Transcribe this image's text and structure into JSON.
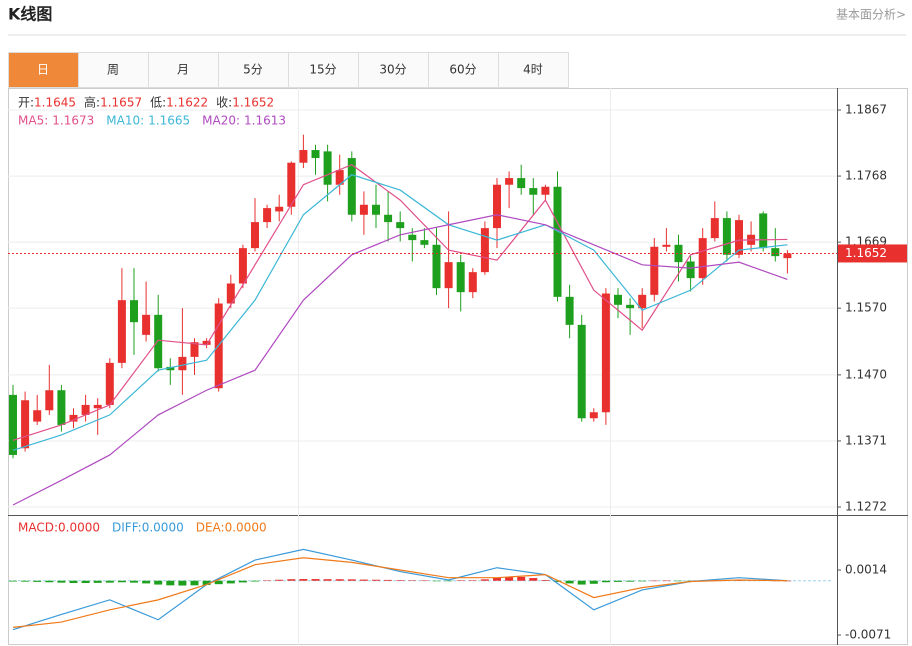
{
  "header": {
    "title": "K线图",
    "link": "基本面分析>"
  },
  "tabs": [
    "日",
    "周",
    "月",
    "5分",
    "15分",
    "30分",
    "60分",
    "4时"
  ],
  "active_tab": "日",
  "chart_data": [
    {
      "type": "candlestick",
      "ohlc_labels": [
        "开:",
        "高:",
        "低:",
        "收:"
      ],
      "up_color": "#e8312f",
      "down_color": "#1ea01e",
      "open": [
        1.144,
        1.136,
        1.14,
        1.1417,
        1.1447,
        1.14,
        1.141,
        1.142,
        1.1425,
        1.1488,
        1.1582,
        1.153,
        1.156,
        1.1482,
        1.1477,
        1.1497,
        1.1515,
        1.145,
        1.1577,
        1.1607,
        1.166,
        1.1699,
        1.1715,
        1.1722,
        1.1788,
        1.1807,
        1.1805,
        1.1755,
        1.1795,
        1.171,
        1.1725,
        1.171,
        1.1699,
        1.168,
        1.1672,
        1.1665,
        1.16,
        1.1639,
        1.1594,
        1.1624,
        1.169,
        1.1755,
        1.1765,
        1.175,
        1.174,
        1.1752,
        1.1587,
        1.1545,
        1.1405,
        1.1414,
        1.159,
        1.1575,
        1.157,
        1.159,
        1.1662,
        1.1665,
        1.164,
        1.1615,
        1.1675,
        1.1705,
        1.165,
        1.1665,
        1.1712,
        1.166,
        1.1645
      ],
      "close": [
        1.135,
        1.1432,
        1.1417,
        1.1447,
        1.1395,
        1.141,
        1.1425,
        1.1425,
        1.1488,
        1.1582,
        1.1549,
        1.156,
        1.148,
        1.1477,
        1.1497,
        1.1519,
        1.1521,
        1.1577,
        1.1607,
        1.166,
        1.1699,
        1.172,
        1.1722,
        1.1788,
        1.1807,
        1.1795,
        1.1755,
        1.1777,
        1.171,
        1.1725,
        1.171,
        1.1699,
        1.169,
        1.1672,
        1.1665,
        1.16,
        1.1639,
        1.1594,
        1.1624,
        1.169,
        1.1755,
        1.1765,
        1.175,
        1.174,
        1.1752,
        1.1587,
        1.1545,
        1.1405,
        1.1414,
        1.1592,
        1.1575,
        1.157,
        1.159,
        1.1662,
        1.1665,
        1.1639,
        1.1615,
        1.1675,
        1.1705,
        1.165,
        1.1702,
        1.168,
        1.166,
        1.1648,
        1.1652
      ],
      "high": [
        1.1455,
        1.1445,
        1.144,
        1.1485,
        1.1455,
        1.142,
        1.144,
        1.1435,
        1.1495,
        1.163,
        1.163,
        1.161,
        1.159,
        1.1495,
        1.157,
        1.1525,
        1.1525,
        1.1585,
        1.162,
        1.1665,
        1.1735,
        1.1725,
        1.174,
        1.179,
        1.183,
        1.1815,
        1.1815,
        1.18,
        1.1805,
        1.1745,
        1.1755,
        1.1745,
        1.1715,
        1.169,
        1.169,
        1.169,
        1.1715,
        1.165,
        1.163,
        1.17,
        1.1765,
        1.1775,
        1.1785,
        1.1765,
        1.1755,
        1.1775,
        1.1605,
        1.156,
        1.142,
        1.16,
        1.16,
        1.1585,
        1.16,
        1.1675,
        1.169,
        1.168,
        1.165,
        1.169,
        1.173,
        1.1715,
        1.171,
        1.17,
        1.1715,
        1.169,
        1.1657
      ],
      "low": [
        1.1345,
        1.1355,
        1.1395,
        1.141,
        1.1385,
        1.139,
        1.14,
        1.138,
        1.142,
        1.148,
        1.15,
        1.152,
        1.1475,
        1.1455,
        1.144,
        1.147,
        1.151,
        1.1445,
        1.157,
        1.16,
        1.1655,
        1.169,
        1.17,
        1.171,
        1.178,
        1.177,
        1.173,
        1.174,
        1.17,
        1.168,
        1.169,
        1.167,
        1.167,
        1.164,
        1.166,
        1.159,
        1.157,
        1.1565,
        1.1585,
        1.162,
        1.166,
        1.172,
        1.174,
        1.171,
        1.173,
        1.158,
        1.1525,
        1.14,
        1.14,
        1.1395,
        1.1555,
        1.153,
        1.154,
        1.158,
        1.1655,
        1.161,
        1.1595,
        1.1605,
        1.167,
        1.164,
        1.1645,
        1.1655,
        1.1655,
        1.164,
        1.1622
      ],
      "series": [
        {
          "name": "MA5:",
          "color": "#e0508a",
          "x": [
            0,
            4,
            8,
            12,
            16,
            20,
            24,
            28,
            32,
            36,
            40,
            44,
            48,
            52,
            56,
            60,
            64
          ],
          "values": [
            1.1372,
            1.1395,
            1.1425,
            1.1522,
            1.1515,
            1.1635,
            1.1755,
            1.1785,
            1.1732,
            1.1657,
            1.1642,
            1.1732,
            1.1597,
            1.1537,
            1.165,
            1.1672,
            1.1673
          ]
        },
        {
          "name": "MA10:",
          "color": "#3cb7d6",
          "x": [
            0,
            4,
            8,
            12,
            16,
            20,
            24,
            28,
            32,
            36,
            40,
            44,
            48,
            52,
            56,
            60,
            64
          ],
          "values": [
            1.1357,
            1.138,
            1.141,
            1.1477,
            1.1492,
            1.1582,
            1.171,
            1.177,
            1.1747,
            1.1695,
            1.1672,
            1.1695,
            1.1657,
            1.1567,
            1.1597,
            1.1657,
            1.1665
          ]
        },
        {
          "name": "MA20:",
          "color": "#b04bc0",
          "x": [
            0,
            4,
            8,
            12,
            16,
            20,
            24,
            28,
            32,
            36,
            40,
            44,
            48,
            52,
            56,
            60,
            64
          ],
          "values": [
            1.1275,
            1.1312,
            1.135,
            1.141,
            1.1447,
            1.1477,
            1.1582,
            1.165,
            1.168,
            1.1695,
            1.171,
            1.1695,
            1.1665,
            1.1635,
            1.163,
            1.1639,
            1.1613
          ]
        }
      ],
      "ylim": [
        1.126,
        1.1897
      ],
      "yticks": [
        1.1867,
        1.1768,
        1.1669,
        {
          "value": 1.157,
          "label": "1.1570"
        },
        {
          "value": 1.147,
          "label": "1.1470"
        },
        1.1371,
        1.1272
      ],
      "grid": true,
      "last_price_line": true
    },
    {
      "type": "macd",
      "legend": [
        {
          "name": "MACD:",
          "value": {
            "value": 0,
            "label": "0.0000"
          },
          "color": "#e8312f"
        },
        {
          "name": "DIFF:",
          "value": {
            "value": 0,
            "label": "0.0000"
          },
          "color": "#3a9ad9"
        },
        {
          "name": "DEA:",
          "value": {
            "value": 0,
            "label": "0.0000"
          },
          "color": "#f07a1a"
        }
      ],
      "values": [
        -0.0001,
        -0.00012,
        -0.00015,
        -0.0002,
        -0.00025,
        -0.0003,
        -0.0003,
        -0.00028,
        -0.00025,
        -0.0002,
        -0.00025,
        -0.00035,
        -0.0005,
        -0.0006,
        -0.00063,
        -0.0006,
        -0.00055,
        -0.00045,
        -0.00035,
        -0.00022,
        -0.0001,
        3e-05,
        0.00013,
        0.0002,
        0.00022,
        0.00022,
        0.0002,
        0.0002,
        0.00018,
        0.00015,
        0.00013,
        0.00011,
        8e-05,
        6e-05,
        3e-05,
        -5e-05,
        -3e-05,
        5e-05,
        6e-05,
        0.00018,
        0.00042,
        0.0005,
        0.0005,
        0.00035,
        0.0001,
        -0.00015,
        -0.00035,
        -0.0005,
        -0.0004,
        -0.0002,
        -0.00015,
        -0.00012,
        -8e-05,
        1e-05,
        2e-05,
        -2e-05,
        -3e-05,
        3e-05,
        8e-05,
        7e-05,
        5e-05,
        8e-05,
        4e-05,
        1e-05,
        0
      ],
      "up_color": "#e8312f",
      "down_color": "#1ea01e",
      "series": [
        {
          "name": "DIFF",
          "color": "#3a9ad9",
          "x": [
            0,
            4,
            8,
            12,
            16,
            20,
            24,
            28,
            32,
            36,
            40,
            44,
            48,
            52,
            56,
            60,
            64
          ],
          "values": [
            -0.0064,
            -0.0044,
            -0.0025,
            -0.0051,
            -0.0005,
            0.0027,
            0.0041,
            0.0027,
            0.0012,
            0.0001,
            0.0017,
            0.0008,
            -0.0038,
            -0.0012,
            -0.0001,
            0.0004,
            0
          ]
        },
        {
          "name": "DEA",
          "color": "#f07a1a",
          "x": [
            0,
            4,
            8,
            12,
            16,
            20,
            24,
            28,
            32,
            36,
            40,
            44,
            48,
            52,
            56,
            60,
            64
          ],
          "values": [
            -0.0061,
            -0.0054,
            -0.0038,
            -0.0025,
            -0.0005,
            0.0021,
            0.003,
            0.0024,
            0.0014,
            0.0004,
            0.0004,
            0.0008,
            -0.0022,
            -0.0009,
            -0.0001,
            0.0001,
            0
          ]
        }
      ],
      "ylim": [
        -0.0084,
        0.0082
      ],
      "yticks": [
        0.0014,
        -0.0071
      ]
    }
  ]
}
